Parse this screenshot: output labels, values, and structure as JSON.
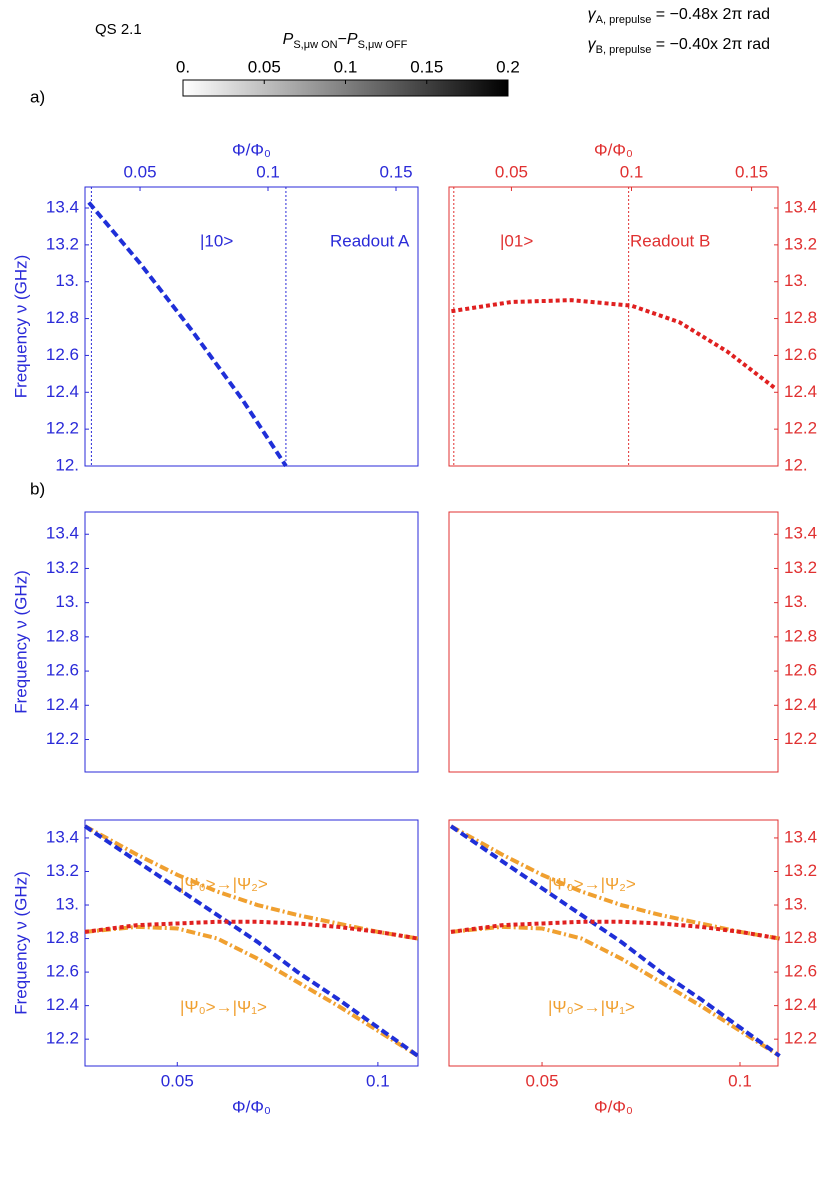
{
  "figure": {
    "id_label": "QS 2.1",
    "panel_a": "a)",
    "panel_b": "b)",
    "gamma_a": {
      "symbol": "γ",
      "sub": "A, prepulse",
      "rest": " = −0.48x 2π rad"
    },
    "gamma_b": {
      "symbol": "γ",
      "sub": "B, prepulse",
      "rest": " = −0.40x 2π rad"
    },
    "colorbar": {
      "p1": "P",
      "s1": "S,μw ON",
      "sep": "−",
      "p2": "P",
      "s2": "S,μw OFF",
      "lim": [
        0,
        0.2
      ],
      "ticks": [
        {
          "value": 0,
          "label": "0."
        },
        0.05,
        0.1,
        0.15,
        0.2
      ]
    }
  },
  "chart_data": [
    {
      "type": "line",
      "frame_color": "#2a2ad8",
      "xtick_side": "top",
      "ytick_side": "left",
      "xlabel": "Φ/Φ₀",
      "ylabel": "Frequency ν (GHz)",
      "xlim": [
        0.0285,
        0.1586
      ],
      "ylim": [
        12.0,
        13.514
      ],
      "xticks": [
        0.05,
        0.1,
        0.15
      ],
      "yticks": [
        {
          "value": 12.0,
          "label": "12."
        },
        12.2,
        12.4,
        12.6,
        12.8,
        {
          "value": 13.0,
          "label": "13."
        },
        13.2,
        13.4
      ],
      "vlines": [
        0.031,
        0.107
      ],
      "annotations": [
        "|10>",
        "Readout A"
      ],
      "series": [
        {
          "color": "#1f2fd8",
          "style": "dashed",
          "x": [
            0.03,
            0.05,
            0.07,
            0.09,
            0.107
          ],
          "values": [
            13.43,
            13.1,
            12.74,
            12.36,
            12.0
          ]
        }
      ]
    },
    {
      "type": "line",
      "frame_color": "#e03030",
      "xtick_side": "top",
      "ytick_side": "right",
      "xlabel": "Φ/Φ₀",
      "xlim": [
        0.024,
        0.161
      ],
      "ylim": [
        12.0,
        13.514
      ],
      "xticks": [
        0.05,
        0.1,
        0.15
      ],
      "yticks": [
        {
          "value": 12.0,
          "label": "12."
        },
        12.2,
        12.4,
        12.6,
        12.8,
        {
          "value": 13.0,
          "label": "13."
        },
        13.2,
        13.4
      ],
      "vlines": [
        0.026,
        0.0988
      ],
      "annotations": [
        "|01>",
        "Readout B"
      ],
      "series": [
        {
          "color": "#e02020",
          "style": "dotted",
          "x": [
            0.025,
            0.05,
            0.075,
            0.1,
            0.12,
            0.14,
            0.16
          ],
          "values": [
            12.84,
            12.89,
            12.9,
            12.87,
            12.78,
            12.62,
            12.42
          ]
        }
      ]
    },
    {
      "type": "line",
      "frame_color": "#2a2ad8",
      "ytick_side": "left",
      "ylabel": "Frequency ν (GHz)",
      "xlim": [
        0.027,
        0.11
      ],
      "ylim": [
        12.01,
        13.53
      ],
      "yticks": [
        12.2,
        12.4,
        12.6,
        12.8,
        {
          "value": 13.0,
          "label": "13."
        },
        13.2,
        13.4
      ],
      "series": []
    },
    {
      "type": "line",
      "frame_color": "#e03030",
      "ytick_side": "right",
      "xlim": [
        0.0265,
        0.1096
      ],
      "ylim": [
        12.01,
        13.53
      ],
      "yticks": [
        12.2,
        12.4,
        12.6,
        12.8,
        {
          "value": 13.0,
          "label": "13."
        },
        13.2,
        13.4
      ],
      "series": []
    },
    {
      "type": "line",
      "frame_color": "#2a2ad8",
      "xtick_side": "bottom",
      "ytick_side": "left",
      "xlabel": "Φ/Φ₀",
      "ylabel": "Frequency ν (GHz)",
      "xlim": [
        0.027,
        0.11
      ],
      "ylim": [
        12.04,
        13.507
      ],
      "xticks": [
        0.05,
        0.1
      ],
      "yticks": [
        12.2,
        12.4,
        12.6,
        12.8,
        {
          "value": 13.0,
          "label": "13."
        },
        13.2,
        13.4
      ],
      "annotations": [
        "|Ψ₀>→|Ψ₂>",
        "|Ψ₀>→|Ψ₁>"
      ],
      "series": [
        {
          "color": "#f0a030",
          "style": "dashdot",
          "x": [
            0.027,
            0.04,
            0.05,
            0.06,
            0.07,
            0.08,
            0.09,
            0.1,
            0.11
          ],
          "values": [
            13.47,
            13.3,
            13.18,
            13.08,
            13.0,
            12.94,
            12.89,
            12.84,
            12.8
          ]
        },
        {
          "color": "#f0a030",
          "style": "dashdot",
          "x": [
            0.027,
            0.04,
            0.05,
            0.06,
            0.07,
            0.08,
            0.09,
            0.1,
            0.11
          ],
          "values": [
            12.84,
            12.87,
            12.86,
            12.8,
            12.68,
            12.54,
            12.4,
            12.25,
            12.1
          ]
        },
        {
          "color": "#1f2fd8",
          "style": "dashed",
          "x": [
            0.027,
            0.04,
            0.05,
            0.06,
            0.07,
            0.08,
            0.09,
            0.1,
            0.11
          ],
          "values": [
            13.47,
            13.26,
            13.1,
            12.94,
            12.78,
            12.6,
            12.44,
            12.27,
            12.1
          ]
        },
        {
          "color": "#e02020",
          "style": "dotted",
          "x": [
            0.027,
            0.04,
            0.05,
            0.06,
            0.07,
            0.08,
            0.09,
            0.1,
            0.11
          ],
          "values": [
            12.84,
            12.88,
            12.89,
            12.9,
            12.9,
            12.89,
            12.87,
            12.84,
            12.8
          ]
        }
      ]
    },
    {
      "type": "line",
      "frame_color": "#e03030",
      "xtick_side": "bottom",
      "ytick_side": "right",
      "xlabel": "Φ/Φ₀",
      "xlim": [
        0.0265,
        0.1096
      ],
      "ylim": [
        12.04,
        13.507
      ],
      "xticks": [
        0.05,
        0.1
      ],
      "yticks": [
        12.2,
        12.4,
        12.6,
        12.8,
        {
          "value": 13.0,
          "label": "13."
        },
        13.2,
        13.4
      ],
      "annotations": [
        "|Ψ₀>→|Ψ₂>",
        "|Ψ₀>→|Ψ₁>"
      ],
      "series": [
        {
          "color": "#f0a030",
          "style": "dashdot",
          "x": [
            0.027,
            0.04,
            0.05,
            0.06,
            0.07,
            0.08,
            0.09,
            0.1,
            0.11
          ],
          "values": [
            13.47,
            13.3,
            13.18,
            13.08,
            13.0,
            12.94,
            12.89,
            12.84,
            12.8
          ]
        },
        {
          "color": "#f0a030",
          "style": "dashdot",
          "x": [
            0.027,
            0.04,
            0.05,
            0.06,
            0.07,
            0.08,
            0.09,
            0.1,
            0.11
          ],
          "values": [
            12.84,
            12.87,
            12.86,
            12.8,
            12.68,
            12.54,
            12.4,
            12.25,
            12.1
          ]
        },
        {
          "color": "#1f2fd8",
          "style": "dashed",
          "x": [
            0.027,
            0.04,
            0.05,
            0.06,
            0.07,
            0.08,
            0.09,
            0.1,
            0.11
          ],
          "values": [
            13.47,
            13.26,
            13.1,
            12.94,
            12.78,
            12.6,
            12.44,
            12.27,
            12.1
          ]
        },
        {
          "color": "#e02020",
          "style": "dotted",
          "x": [
            0.027,
            0.04,
            0.05,
            0.06,
            0.07,
            0.08,
            0.09,
            0.1,
            0.11
          ],
          "values": [
            12.84,
            12.88,
            12.89,
            12.9,
            12.9,
            12.89,
            12.87,
            12.84,
            12.8
          ]
        }
      ]
    }
  ]
}
